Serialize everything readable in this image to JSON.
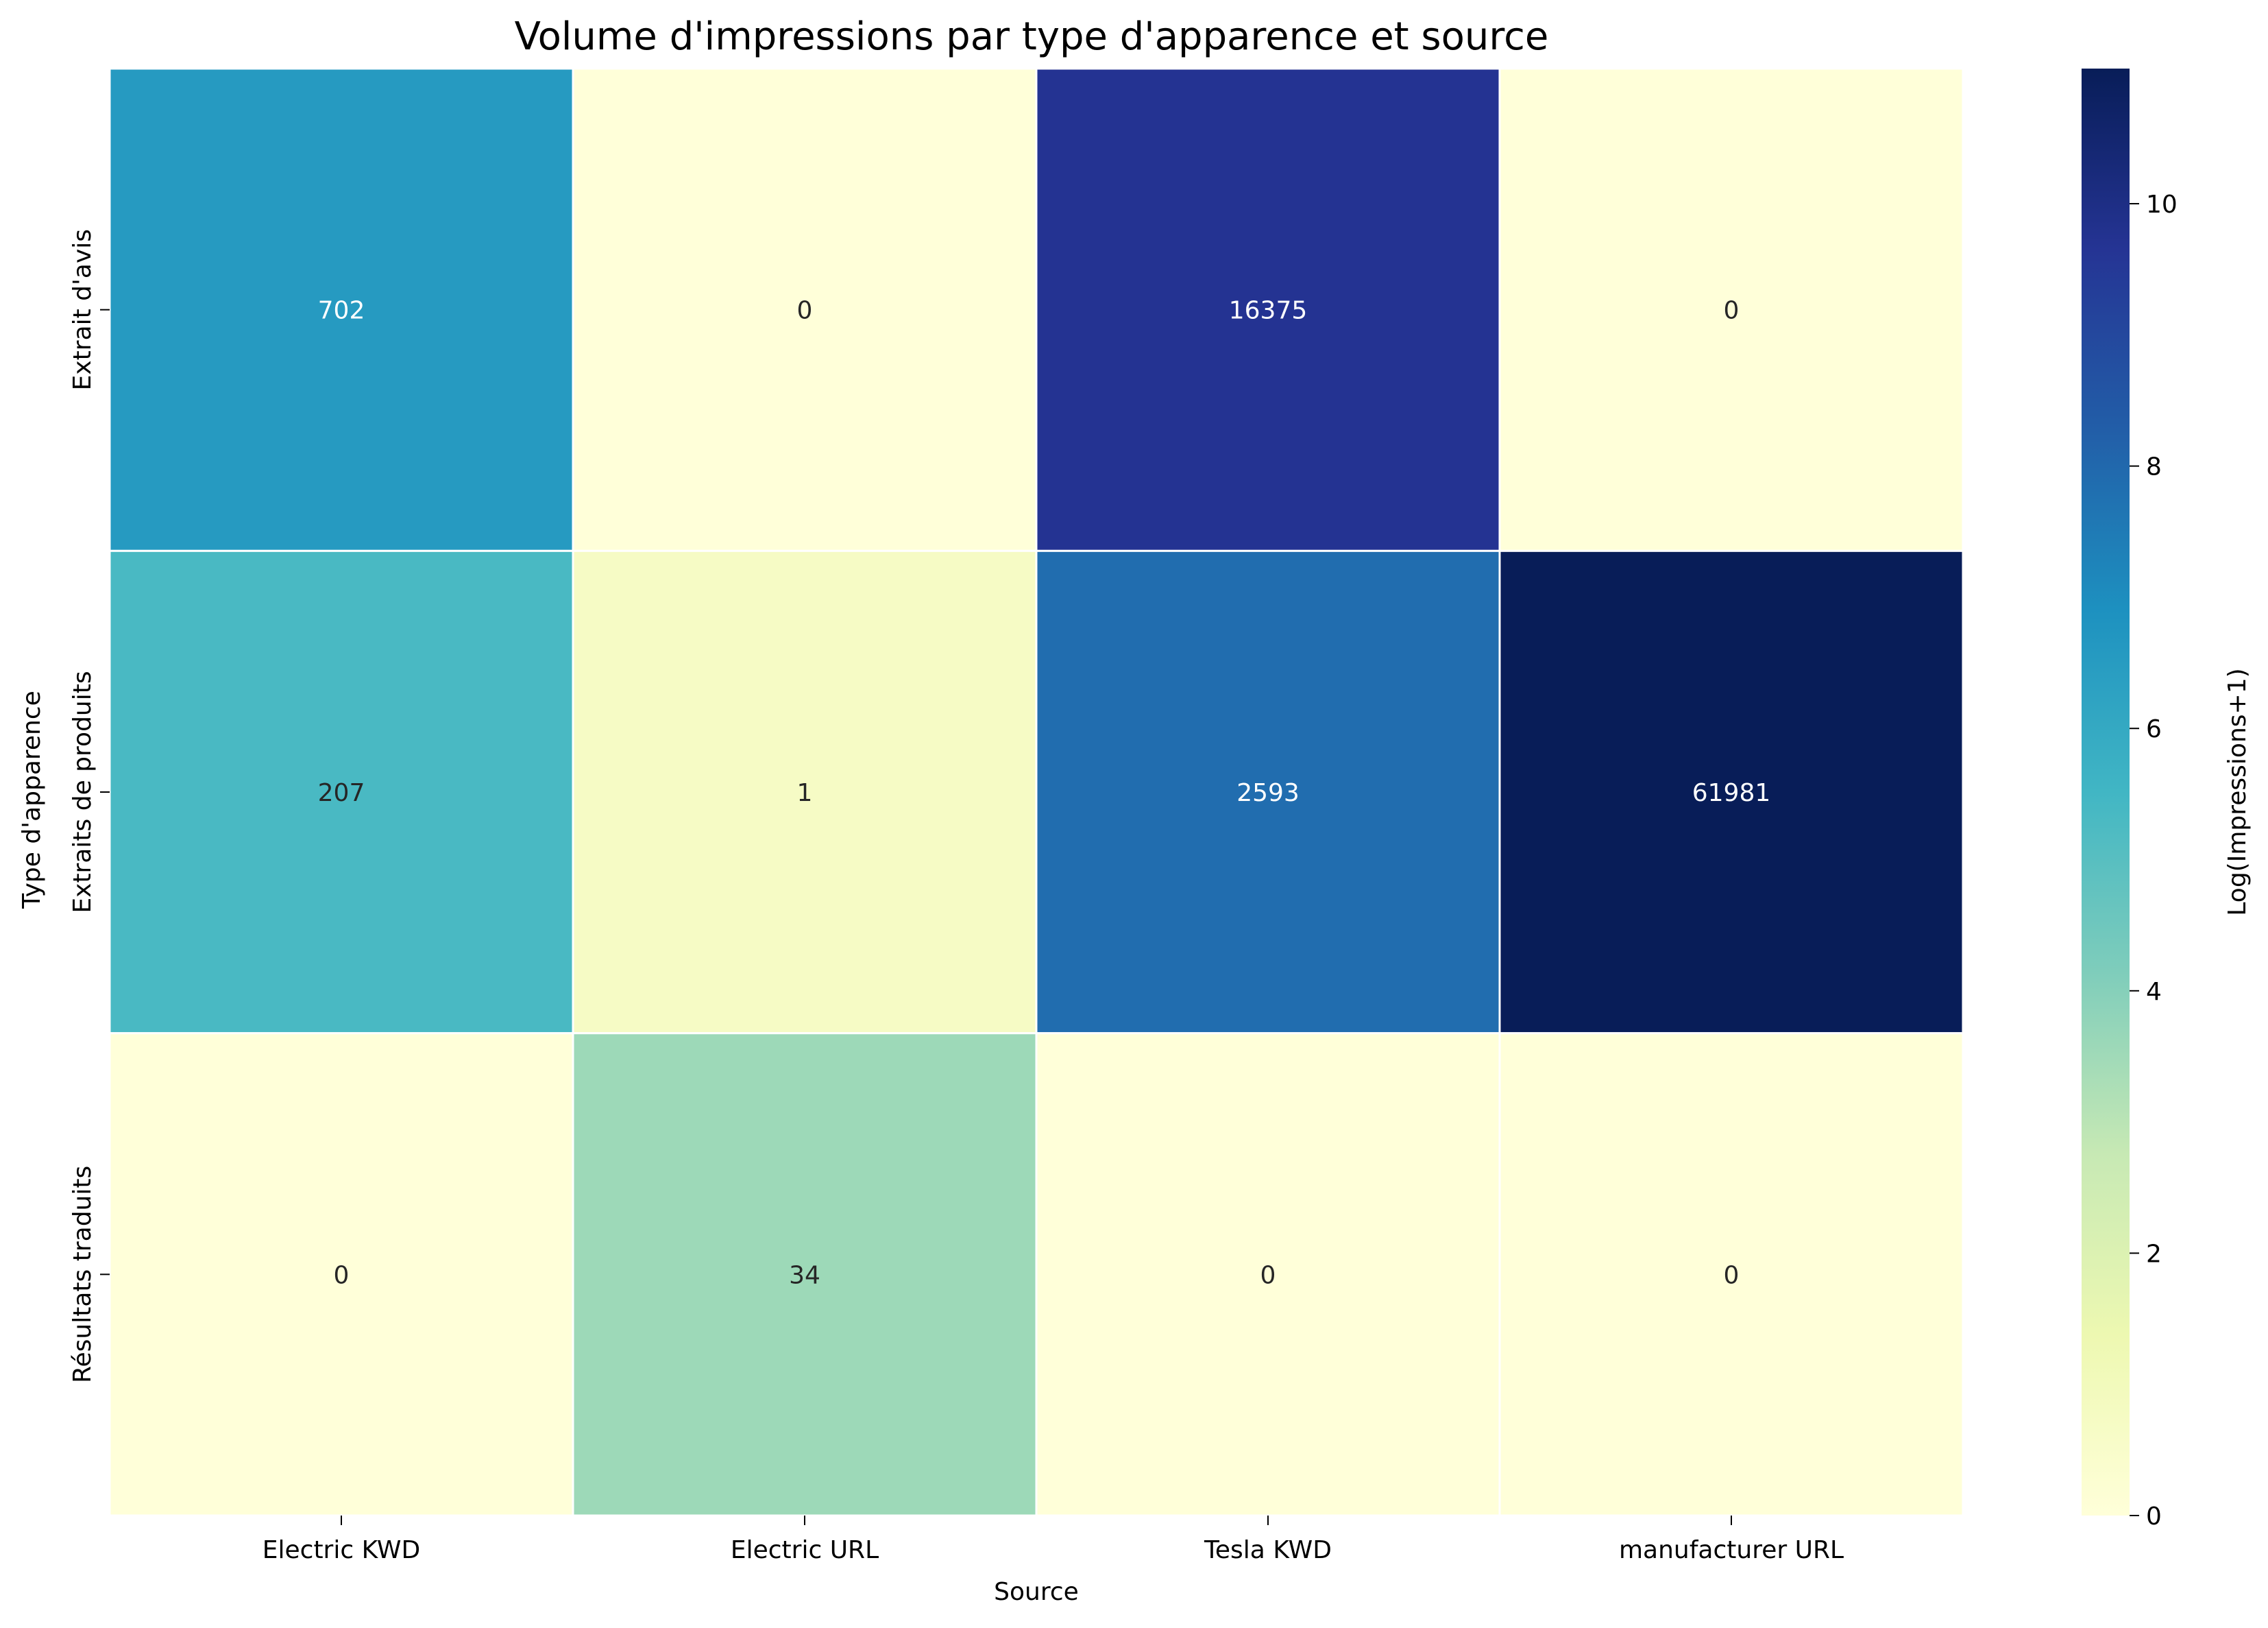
{
  "chart_data": {
    "type": "heatmap",
    "title": "Volume d'impressions par type d'apparence et source",
    "xlabel": "Source",
    "ylabel": "Type d'apparence",
    "x_categories": [
      "Electric KWD",
      "Electric URL",
      "Tesla KWD",
      "manufacturer URL"
    ],
    "y_categories": [
      "Extrait d'avis",
      "Extraits de produits",
      "Résultats traduits"
    ],
    "values": [
      [
        702,
        0,
        16375,
        0
      ],
      [
        207,
        1,
        2593,
        61981
      ],
      [
        0,
        34,
        0,
        0
      ]
    ],
    "color_transform": "log(x+1)",
    "colormap": "YlGnBu",
    "colorbar": {
      "label": "Log(Impressions+1)",
      "range": [
        0,
        11.03
      ],
      "ticks": [
        0,
        2,
        4,
        6,
        8,
        10
      ]
    }
  }
}
